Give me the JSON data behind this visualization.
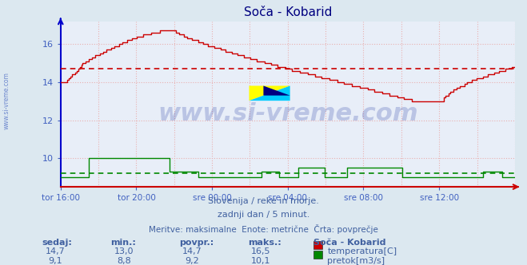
{
  "title": "Soča - Kobarid",
  "bg_color": "#dce8f0",
  "plot_bg_color": "#e8eef8",
  "grid_color": "#e8b0b0",
  "title_color": "#000080",
  "axis_color": "#4060c0",
  "label_color": "#4060a0",
  "temp_color": "#cc0000",
  "flow_color": "#008800",
  "avg_temp_color": "#cc0000",
  "avg_flow_color": "#008800",
  "watermark_color": "#1830a0",
  "ylim": [
    8.5,
    17.2
  ],
  "yticks": [
    10,
    12,
    14,
    16
  ],
  "xtick_labels": [
    "tor 16:00",
    "tor 20:00",
    "sre 00:00",
    "sre 04:00",
    "sre 08:00",
    "sre 12:00"
  ],
  "avg_temp": 14.7,
  "avg_flow": 9.2,
  "subtitle1": "Slovenija / reke in morje.",
  "subtitle2": "zadnji dan / 5 minut.",
  "subtitle3": "Meritve: maksimalne  Enote: metrične  Črta: povprečje",
  "table_headers": [
    "sedaj:",
    "min.:",
    "povpr.:",
    "maks.:"
  ],
  "temp_row": [
    "14,7",
    "13,0",
    "14,7",
    "16,5"
  ],
  "flow_row": [
    "9,1",
    "8,8",
    "9,2",
    "10,1"
  ],
  "temp_label": "temperatura[C]",
  "flow_label": "pretok[m3/s]",
  "station_label": "Soča - Kobarid",
  "n_points": 288,
  "left_spine_color": "#0000cc",
  "bottom_spine_color": "#cc0000"
}
